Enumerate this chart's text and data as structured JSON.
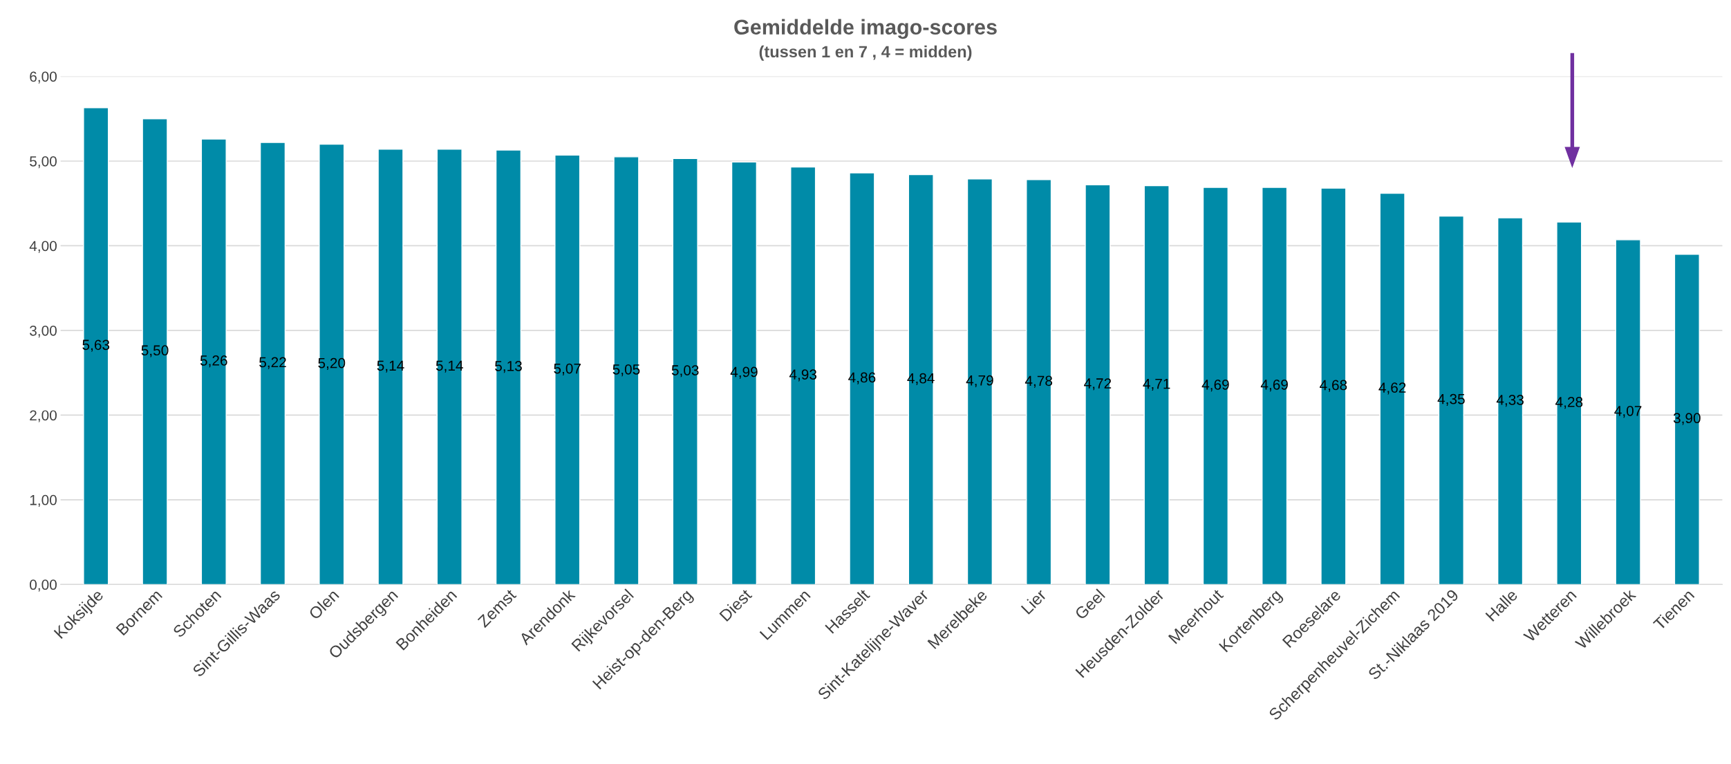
{
  "chart_data": {
    "type": "bar",
    "title": "Gemiddelde imago-scores",
    "subtitle": "(tussen 1 en 7 , 4 = midden)",
    "categories": [
      "Koksijde",
      "Bornem",
      "Schoten",
      "Sint-Gillis-Waas",
      "Olen",
      "Oudsbergen",
      "Bonheiden",
      "Zemst",
      "Arendonk",
      "Rijkevorsel",
      "Heist-op-den-Berg",
      "Diest",
      "Lummen",
      "Hasselt",
      "Sint-Katelijne-Waver",
      "Merelbeke",
      "Lier",
      "Geel",
      "Heusden-Zolder",
      "Meerhout",
      "Kortenberg",
      "Roeselare",
      "Scherpenheuvel-Zichem",
      "St.-Niklaas 2019",
      "Halle",
      "Wetteren",
      "Willebroek",
      "Tienen"
    ],
    "values": [
      5.63,
      5.5,
      5.26,
      5.22,
      5.2,
      5.14,
      5.14,
      5.13,
      5.07,
      5.05,
      5.03,
      4.99,
      4.93,
      4.86,
      4.84,
      4.79,
      4.78,
      4.72,
      4.71,
      4.69,
      4.69,
      4.68,
      4.62,
      4.35,
      4.33,
      4.28,
      4.07,
      3.9
    ],
    "value_labels": [
      "5,63",
      "5,50",
      "5,26",
      "5,22",
      "5,20",
      "5,14",
      "5,14",
      "5,13",
      "5,07",
      "5,05",
      "5,03",
      "4,99",
      "4,93",
      "4,86",
      "4,84",
      "4,79",
      "4,78",
      "4,72",
      "4,71",
      "4,69",
      "4,69",
      "4,68",
      "4,62",
      "4,35",
      "4,33",
      "4,28",
      "4,07",
      "3,90"
    ],
    "color": "#008ba8",
    "ylim": [
      0,
      6
    ],
    "yticks": [
      {
        "value": 0,
        "label": "0,00"
      },
      {
        "value": 1,
        "label": "1,00"
      },
      {
        "value": 2,
        "label": "2,00"
      },
      {
        "value": 3,
        "label": "3,00"
      },
      {
        "value": 4,
        "label": "4,00"
      },
      {
        "value": 5,
        "label": "5,00"
      },
      {
        "value": 6,
        "label": "6,00"
      }
    ],
    "grid": "y"
  }
}
